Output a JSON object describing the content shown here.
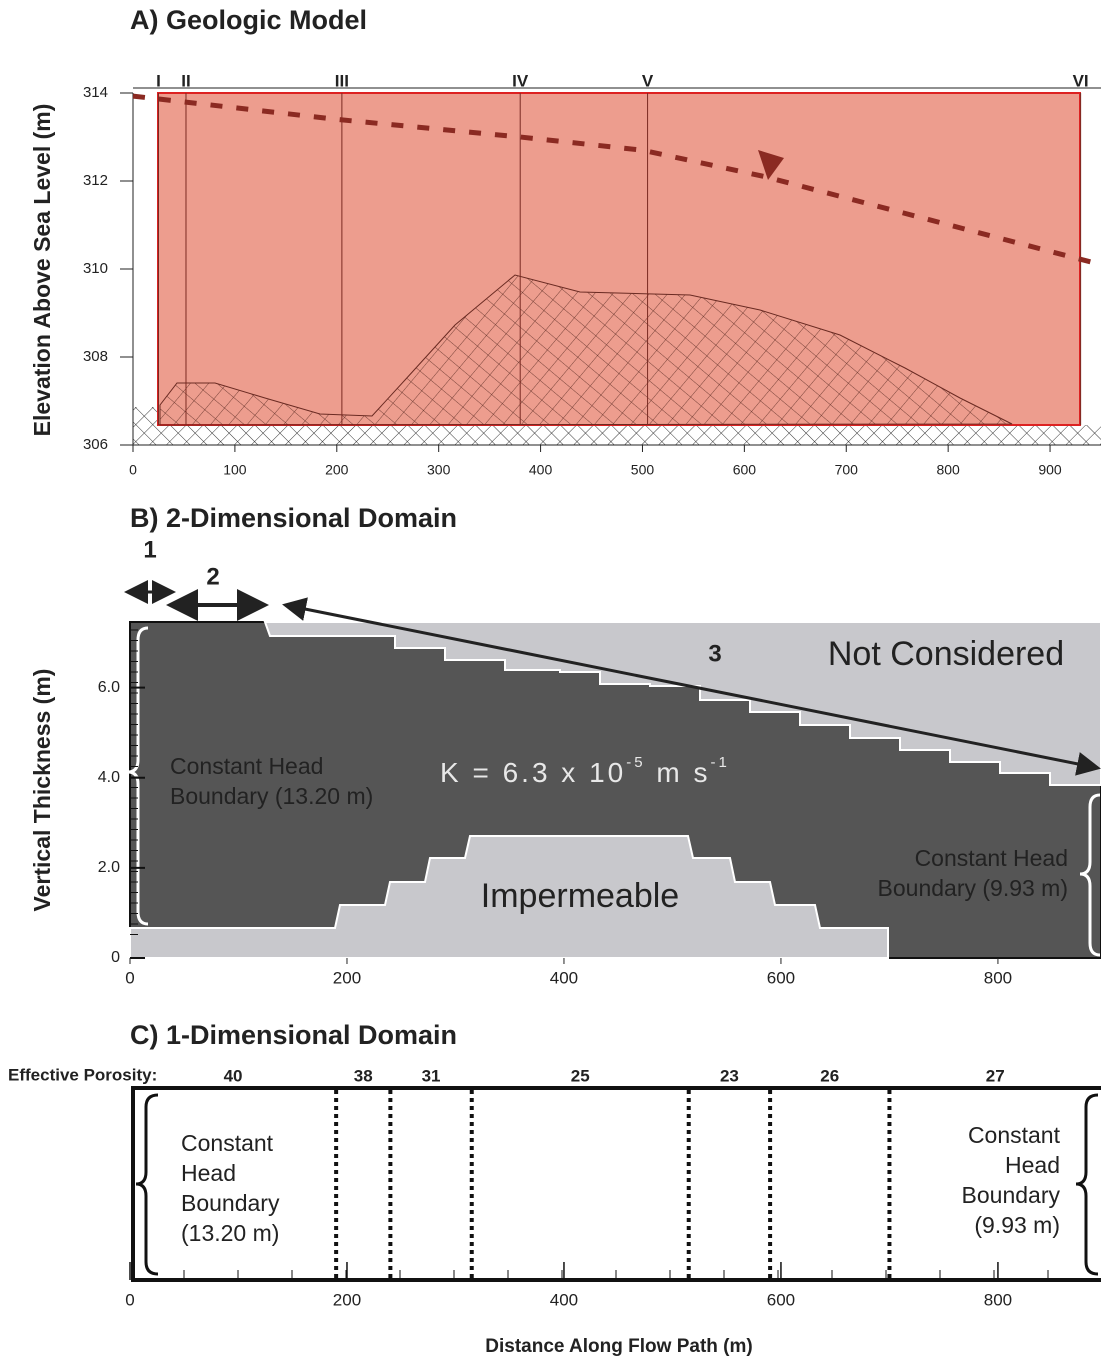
{
  "chart_data": [
    {
      "type": "section",
      "title": "A) Geologic Model",
      "y_label": "Elevation Above Sea Level  (m)",
      "xlim": [
        0,
        950
      ],
      "xticks": [
        0,
        100,
        200,
        300,
        400,
        500,
        600,
        700,
        800,
        900
      ],
      "ylim": [
        306,
        314
      ],
      "yticks": [
        306,
        308,
        310,
        312,
        314
      ],
      "color": "#ec9888",
      "sections": {
        "labels": [
          "I",
          "II",
          "III",
          "IV",
          "V",
          "VI"
        ],
        "x": [
          25,
          52,
          205,
          380,
          505,
          930
        ]
      },
      "water_table": {
        "x": [
          0,
          200,
          380,
          500,
          620,
          900,
          950
        ],
        "y": [
          313.93,
          313.4,
          313.0,
          312.7,
          312.1,
          310.4,
          310.1
        ],
        "color": "#8b2a22"
      }
    },
    {
      "type": "domain2d",
      "title": "B) 2-Dimensional Domain",
      "y_label": "Vertical Thickness  (m)",
      "xlim": [
        0,
        895
      ],
      "xticks": [
        0,
        200,
        400,
        600,
        800
      ],
      "ylim": [
        0,
        7.5
      ],
      "yticks": [
        0,
        {
          "value": 2,
          "label": "2.0"
        },
        {
          "value": 4,
          "label": "4.0"
        },
        {
          "value": 6,
          "label": "6.0"
        }
      ],
      "zone_labels": [
        "1",
        "2",
        "3"
      ],
      "not_considered": "Not Considered",
      "left_boundary": [
        "Constant Head",
        "Boundary (13.20 m)"
      ],
      "conductivity": [
        "K  =  6.3  x  10",
        "-5",
        " m s",
        "-1"
      ],
      "impermeable": "Impermeable",
      "right_boundary": [
        "Constant Head",
        "Boundary (9.93 m)"
      ]
    },
    {
      "type": "domain1d",
      "title": "C) 1-Dimensional Domain",
      "porosity_label": "Effective Porosity:",
      "porosity": [
        40,
        38,
        31,
        25,
        23,
        26,
        27
      ],
      "boundaries": [
        190,
        240,
        315,
        515,
        590,
        700
      ],
      "xlim": [
        0,
        895
      ],
      "xticks": [
        0,
        200,
        400,
        600,
        800
      ],
      "left_boundary": [
        "Constant",
        "Head",
        "Boundary",
        "(13.20 m)"
      ],
      "right_boundary": [
        "Constant",
        "Head",
        "Boundary",
        "(9.93 m)"
      ],
      "x_label": "Distance Along Flow Path (m)"
    }
  ]
}
